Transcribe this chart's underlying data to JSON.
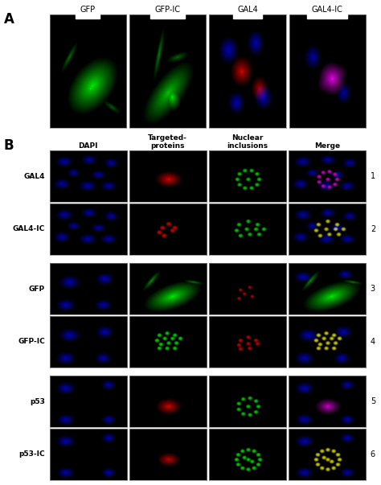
{
  "figure_width": 4.74,
  "figure_height": 6.03,
  "background_color": "#ffffff",
  "panel_A_label": "A",
  "panel_B_label": "B",
  "panel_A_cols": [
    "GFP",
    "GFP-IC",
    "GAL4",
    "GAL4-IC"
  ],
  "panel_B_col_headers": [
    "DAPI",
    "Targeted-\nproteins",
    "Nuclear\ninclusions",
    "Merge"
  ],
  "panel_B_rows": [
    "GAL4",
    "GAL4-IC",
    "GFP",
    "GFP-IC",
    "p53",
    "p53-IC"
  ],
  "row_numbers": [
    "1",
    "2",
    "3",
    "4",
    "5",
    "6"
  ],
  "cell_bg": "#000000",
  "text_color": "#000000"
}
